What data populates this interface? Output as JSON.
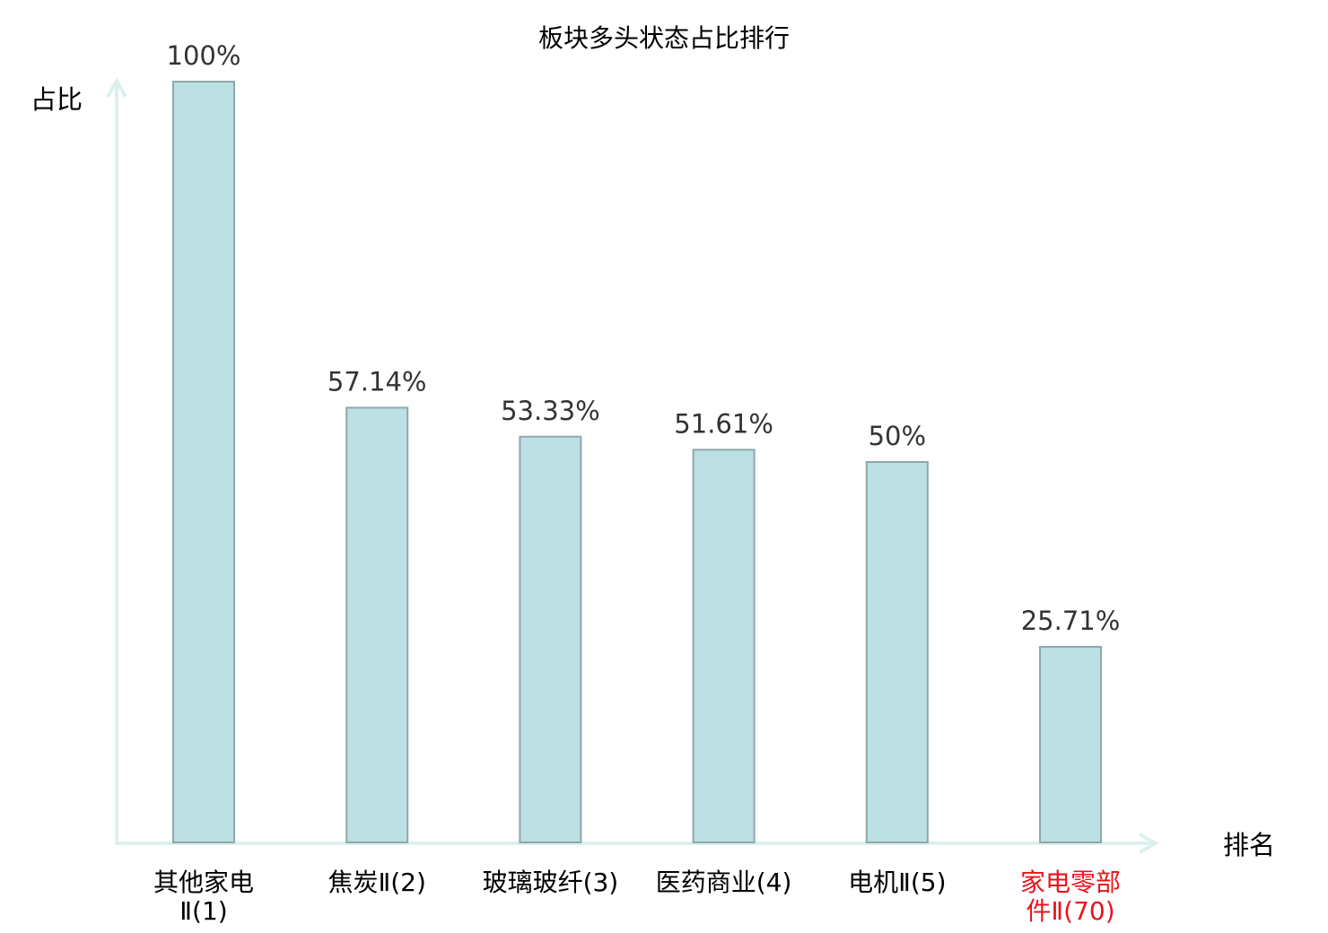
{
  "chart_data": {
    "type": "bar",
    "title": "板块多头状态占比排行",
    "xlabel": "排名",
    "ylabel": "占比",
    "categories": [
      [
        "其他家电",
        "Ⅱ(1)"
      ],
      [
        "焦炭Ⅱ(2)"
      ],
      [
        "玻璃玻纤(3)"
      ],
      [
        "医药商业(4)"
      ],
      [
        "电机Ⅱ(5)"
      ],
      [
        "家电零部",
        "件Ⅱ(70)"
      ]
    ],
    "values": [
      100,
      57.14,
      53.33,
      51.61,
      50,
      25.71
    ],
    "data_labels": [
      "100%",
      "57.14%",
      "53.33%",
      "51.61%",
      "50%",
      "25.71%"
    ],
    "highlight_index": 5,
    "ylim": [
      0,
      100
    ],
    "grid": false,
    "colors": {
      "bar_fill": "#bce0e3",
      "bar_stroke": "#8ea8aa",
      "axis": "#dcf1ee",
      "label": "#000000",
      "highlight_label": "#e8141c",
      "data_label": "#333333"
    }
  }
}
